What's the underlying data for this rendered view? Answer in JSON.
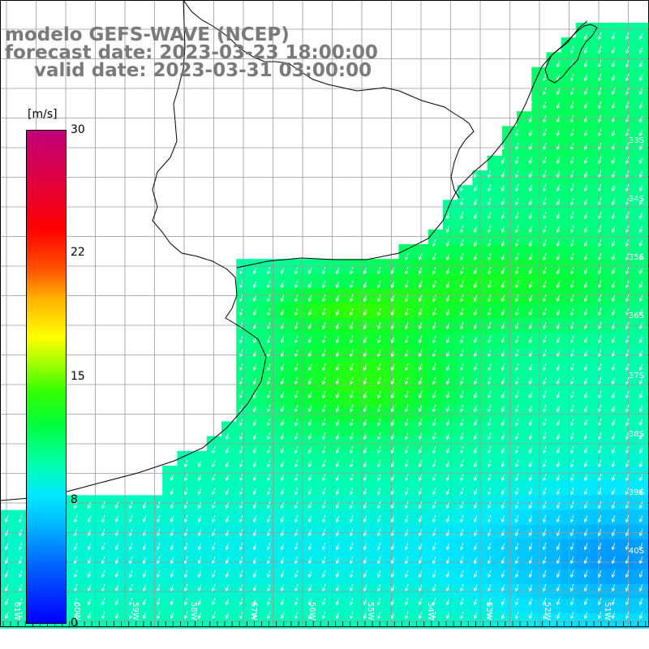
{
  "title": {
    "line1": "modelo GEFS-WAVE (NCEP)",
    "line2": "forecast date: 2023-03-23 18:00:00",
    "line3": "valid date: 2023-03-31 03:00:00"
  },
  "colorbar": {
    "unit": "[m/s]",
    "min": 0,
    "max": 30,
    "labels": [
      "30",
      "22",
      "15",
      "8",
      "0"
    ]
  },
  "axes": {
    "lat_labels": [
      "33S",
      "34S",
      "35S",
      "36S",
      "37S",
      "38S",
      "39S",
      "40S"
    ],
    "lon_labels": [
      "61W",
      "60W",
      "59W",
      "58W",
      "57W",
      "56W",
      "55W",
      "54W",
      "53W",
      "52W",
      "51W"
    ]
  },
  "colors": {
    "land": "#ffffff",
    "coast": "#000000",
    "grid": "#9a9a9a",
    "arrow": "#ffffff",
    "title": "#7a7a7a"
  },
  "field": {
    "variable": "wind speed",
    "units": "m/s",
    "wind_direction": "from north-northeast (arrows point south-southwest)",
    "max_region": "central shelf, about 13-14 m/s (green)",
    "min_region": "southeast corner, about 5-6 m/s (blue)"
  }
}
